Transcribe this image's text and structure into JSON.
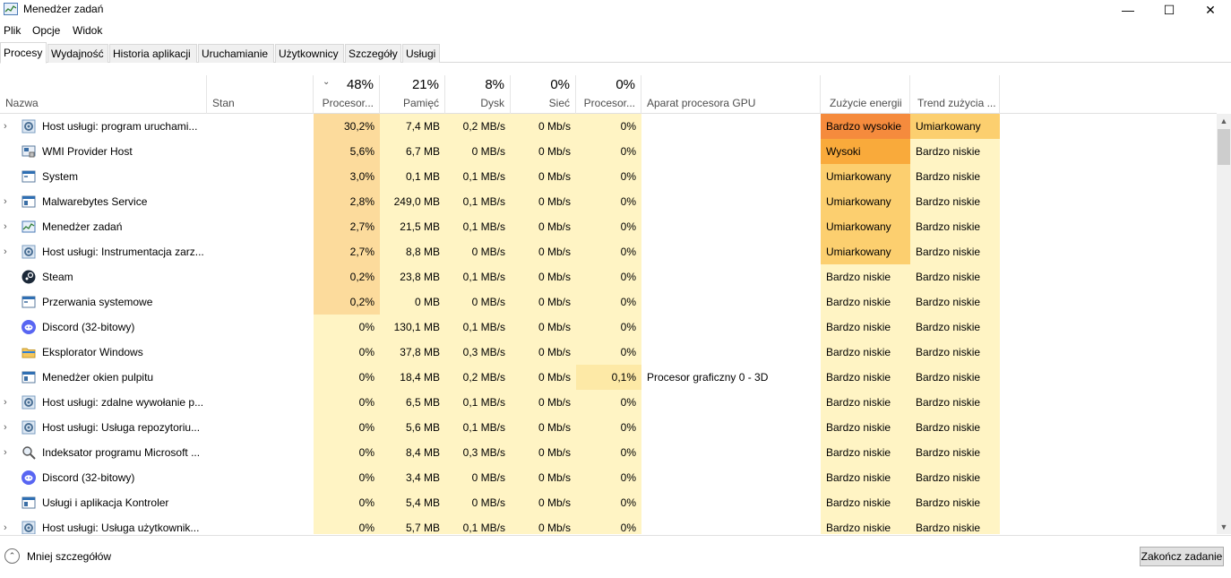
{
  "window": {
    "title": "Menedżer zadań"
  },
  "menu": [
    "Plik",
    "Opcje",
    "Widok"
  ],
  "tabs": [
    "Procesy",
    "Wydajność",
    "Historia aplikacji",
    "Uruchamianie",
    "Użytkownicy",
    "Szczegóły",
    "Usługi"
  ],
  "active_tab": 0,
  "columns": {
    "name": "Nazwa",
    "status": "Stan",
    "cpu": {
      "pct": "48%",
      "label": "Procesor..."
    },
    "memory": {
      "pct": "21%",
      "label": "Pamięć"
    },
    "disk": {
      "pct": "8%",
      "label": "Dysk"
    },
    "network": {
      "pct": "0%",
      "label": "Sieć"
    },
    "gpu": {
      "pct": "0%",
      "label": "Procesor..."
    },
    "gpu_engine": "Aparat procesora GPU",
    "power": "Zużycie energii",
    "power_trend": "Trend zużycia ..."
  },
  "colors": {
    "cpu_high": "#fcdb9c",
    "cpu_low": "#fff4c4",
    "mem_bg": "#fff4c4",
    "disk_bg": "#fff4c4",
    "net_bg": "#fff4c4",
    "gpu_bg": "#fff4c4",
    "gpu_hi": "#fde9a6",
    "power_very_high": "#f58b3d",
    "power_high": "#f9aa3b",
    "power_moderate": "#fccf6f",
    "power_low": "#fff4c4"
  },
  "processes": [
    {
      "expand": true,
      "icon": "gear-icon",
      "name": "Host usługi: program uruchami...",
      "cpu": "30,2%",
      "mem": "7,4 MB",
      "disk": "0,2 MB/s",
      "net": "0 Mb/s",
      "gpu": "0%",
      "engine": "",
      "power": "Bardzo wysokie",
      "trend": "Umiarkowany",
      "cpu_level": "high",
      "power_level": "very_high",
      "trend_level": "moderate"
    },
    {
      "expand": false,
      "icon": "wmi-icon",
      "name": "WMI Provider Host",
      "cpu": "5,6%",
      "mem": "6,7 MB",
      "disk": "0 MB/s",
      "net": "0 Mb/s",
      "gpu": "0%",
      "engine": "",
      "power": "Wysoki",
      "trend": "Bardzo niskie",
      "cpu_level": "mid",
      "power_level": "high",
      "trend_level": "low"
    },
    {
      "expand": false,
      "icon": "system-icon",
      "name": "System",
      "cpu": "3,0%",
      "mem": "0,1 MB",
      "disk": "0,1 MB/s",
      "net": "0 Mb/s",
      "gpu": "0%",
      "engine": "",
      "power": "Umiarkowany",
      "trend": "Bardzo niskie",
      "cpu_level": "mid",
      "power_level": "moderate",
      "trend_level": "low"
    },
    {
      "expand": true,
      "icon": "window-icon",
      "name": "Malwarebytes Service",
      "cpu": "2,8%",
      "mem": "249,0 MB",
      "disk": "0,1 MB/s",
      "net": "0 Mb/s",
      "gpu": "0%",
      "engine": "",
      "power": "Umiarkowany",
      "trend": "Bardzo niskie",
      "cpu_level": "mid",
      "power_level": "moderate",
      "trend_level": "low"
    },
    {
      "expand": true,
      "icon": "taskmgr-icon",
      "name": "Menedżer zadań",
      "cpu": "2,7%",
      "mem": "21,5 MB",
      "disk": "0,1 MB/s",
      "net": "0 Mb/s",
      "gpu": "0%",
      "engine": "",
      "power": "Umiarkowany",
      "trend": "Bardzo niskie",
      "cpu_level": "mid",
      "power_level": "moderate",
      "trend_level": "low"
    },
    {
      "expand": true,
      "icon": "gear-icon",
      "name": "Host usługi: Instrumentacja zarz...",
      "cpu": "2,7%",
      "mem": "8,8 MB",
      "disk": "0 MB/s",
      "net": "0 Mb/s",
      "gpu": "0%",
      "engine": "",
      "power": "Umiarkowany",
      "trend": "Bardzo niskie",
      "cpu_level": "mid",
      "power_level": "moderate",
      "trend_level": "low"
    },
    {
      "expand": false,
      "icon": "steam-icon",
      "name": "Steam",
      "cpu": "0,2%",
      "mem": "23,8 MB",
      "disk": "0,1 MB/s",
      "net": "0 Mb/s",
      "gpu": "0%",
      "engine": "",
      "power": "Bardzo niskie",
      "trend": "Bardzo niskie",
      "cpu_level": "mid",
      "power_level": "low",
      "trend_level": "low"
    },
    {
      "expand": false,
      "icon": "system-icon",
      "name": "Przerwania systemowe",
      "cpu": "0,2%",
      "mem": "0 MB",
      "disk": "0 MB/s",
      "net": "0 Mb/s",
      "gpu": "0%",
      "engine": "",
      "power": "Bardzo niskie",
      "trend": "Bardzo niskie",
      "cpu_level": "mid",
      "power_level": "low",
      "trend_level": "low"
    },
    {
      "expand": false,
      "icon": "discord-icon",
      "name": "Discord (32-bitowy)",
      "cpu": "0%",
      "mem": "130,1 MB",
      "disk": "0,1 MB/s",
      "net": "0 Mb/s",
      "gpu": "0%",
      "engine": "",
      "power": "Bardzo niskie",
      "trend": "Bardzo niskie",
      "cpu_level": "low",
      "power_level": "low",
      "trend_level": "low"
    },
    {
      "expand": false,
      "icon": "folder-icon",
      "name": "Eksplorator Windows",
      "cpu": "0%",
      "mem": "37,8 MB",
      "disk": "0,3 MB/s",
      "net": "0 Mb/s",
      "gpu": "0%",
      "engine": "",
      "power": "Bardzo niskie",
      "trend": "Bardzo niskie",
      "cpu_level": "low",
      "power_level": "low",
      "trend_level": "low"
    },
    {
      "expand": false,
      "icon": "window-icon",
      "name": "Menedżer okien pulpitu",
      "cpu": "0%",
      "mem": "18,4 MB",
      "disk": "0,2 MB/s",
      "net": "0 Mb/s",
      "gpu": "0,1%",
      "engine": "Procesor graficzny 0 - 3D",
      "power": "Bardzo niskie",
      "trend": "Bardzo niskie",
      "cpu_level": "low",
      "power_level": "low",
      "trend_level": "low",
      "gpu_hi": true
    },
    {
      "expand": true,
      "icon": "gear-icon",
      "name": "Host usługi: zdalne wywołanie p...",
      "cpu": "0%",
      "mem": "6,5 MB",
      "disk": "0,1 MB/s",
      "net": "0 Mb/s",
      "gpu": "0%",
      "engine": "",
      "power": "Bardzo niskie",
      "trend": "Bardzo niskie",
      "cpu_level": "low",
      "power_level": "low",
      "trend_level": "low"
    },
    {
      "expand": true,
      "icon": "gear-icon",
      "name": "Host usługi: Usługa repozytoriu...",
      "cpu": "0%",
      "mem": "5,6 MB",
      "disk": "0,1 MB/s",
      "net": "0 Mb/s",
      "gpu": "0%",
      "engine": "",
      "power": "Bardzo niskie",
      "trend": "Bardzo niskie",
      "cpu_level": "low",
      "power_level": "low",
      "trend_level": "low"
    },
    {
      "expand": true,
      "icon": "indexer-icon",
      "name": "Indeksator programu Microsoft ...",
      "cpu": "0%",
      "mem": "8,4 MB",
      "disk": "0,3 MB/s",
      "net": "0 Mb/s",
      "gpu": "0%",
      "engine": "",
      "power": "Bardzo niskie",
      "trend": "Bardzo niskie",
      "cpu_level": "low",
      "power_level": "low",
      "trend_level": "low"
    },
    {
      "expand": false,
      "icon": "discord-icon",
      "name": "Discord (32-bitowy)",
      "cpu": "0%",
      "mem": "3,4 MB",
      "disk": "0 MB/s",
      "net": "0 Mb/s",
      "gpu": "0%",
      "engine": "",
      "power": "Bardzo niskie",
      "trend": "Bardzo niskie",
      "cpu_level": "low",
      "power_level": "low",
      "trend_level": "low"
    },
    {
      "expand": false,
      "icon": "window-icon",
      "name": "Usługi i aplikacja Kontroler",
      "cpu": "0%",
      "mem": "5,4 MB",
      "disk": "0 MB/s",
      "net": "0 Mb/s",
      "gpu": "0%",
      "engine": "",
      "power": "Bardzo niskie",
      "trend": "Bardzo niskie",
      "cpu_level": "low",
      "power_level": "low",
      "trend_level": "low"
    },
    {
      "expand": true,
      "icon": "gear-icon",
      "name": "Host usługi: Usługa użytkownik...",
      "cpu": "0%",
      "mem": "5,7 MB",
      "disk": "0,1 MB/s",
      "net": "0 Mb/s",
      "gpu": "0%",
      "engine": "",
      "power": "Bardzo niskie",
      "trend": "Bardzo niskie",
      "cpu_level": "low",
      "power_level": "low",
      "trend_level": "low"
    }
  ],
  "footer": {
    "less_details": "Mniej szczegółów",
    "end_task": "Zakończ zadanie"
  }
}
